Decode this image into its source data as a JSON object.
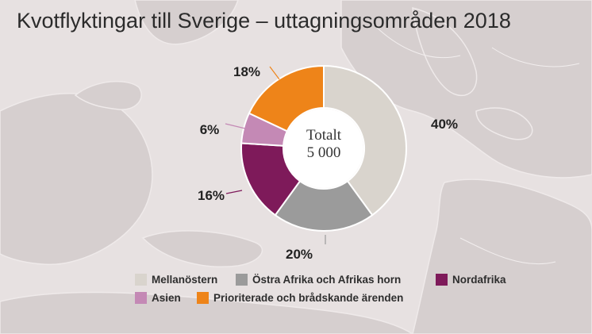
{
  "title": "Kvotflyktingar till Sverige – uttagningsområden 2018",
  "chart_data": {
    "type": "pie",
    "style": "donut",
    "categories": [
      "Mellanöstern",
      "Östra Afrika och Afrikas horn",
      "Nordafrika",
      "Asien",
      "Prioriterade och brådskande ärenden"
    ],
    "values": [
      40,
      20,
      16,
      6,
      18
    ],
    "value_labels": [
      "40%",
      "20%",
      "16%",
      "6%",
      "18%"
    ],
    "center_label": [
      "Totalt",
      "5 000"
    ],
    "legend_position": "bottom",
    "colors": {
      "Mellanöstern": "#d9d4cd",
      "Östra Afrika och Afrikas horn": "#9b9b9b",
      "Nordafrika": "#7e1a5a",
      "Asien": "#c489b5",
      "Prioriterade och brådskande ärenden": "#ee8419"
    },
    "legend": [
      [
        "Mellanöstern",
        "Östra Afrika och Afrikas horn",
        "Nordafrika"
      ],
      [
        "Asien",
        "Prioriterade och brådskande ärenden"
      ]
    ]
  }
}
